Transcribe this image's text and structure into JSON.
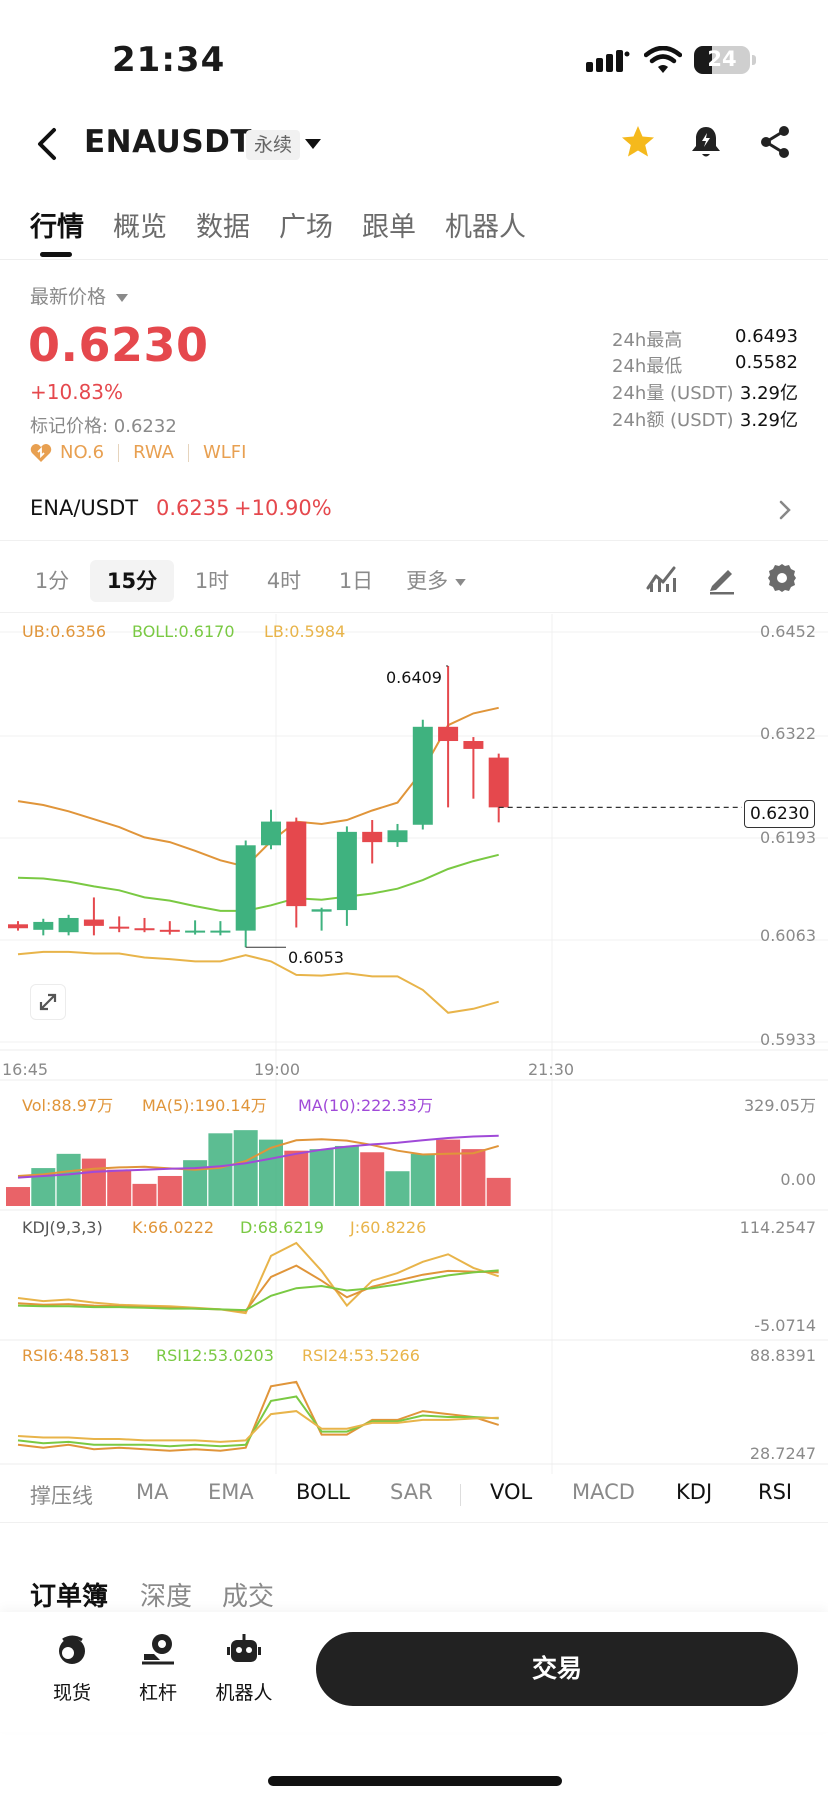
{
  "status_bar": {
    "time": "21:34",
    "battery": "24"
  },
  "header": {
    "pair": "ENAUSDT",
    "contract_type": "永续"
  },
  "tabs": [
    "行情",
    "概览",
    "数据",
    "广场",
    "跟单",
    "机器人"
  ],
  "price": {
    "latest_label": "最新价格",
    "last": "0.6230",
    "change": "+10.83%",
    "mark_price": "标记价格: 0.6232",
    "tags": [
      "NO.6",
      "RWA",
      "WLFI"
    ]
  },
  "stats": [
    {
      "label": "24h最高",
      "value": "0.6493"
    },
    {
      "label": "24h最低",
      "value": "0.5582"
    },
    {
      "label": "24h量 (USDT)",
      "value": "3.29亿"
    },
    {
      "label": "24h额 (USDT)",
      "value": "3.29亿"
    }
  ],
  "spot": {
    "pair": "ENA/USDT",
    "price": "0.6235",
    "change": "+10.90%"
  },
  "timeframes": [
    "1分",
    "15分",
    "1时",
    "4时",
    "1日",
    "更多"
  ],
  "chart_legend": {
    "ub": "UB:0.6356",
    "boll": "BOLL:0.6170",
    "lb": "LB:0.5984",
    "vol": "Vol:88.97万",
    "ma5": "MA(5):190.14万",
    "ma10": "MA(10):222.33万",
    "kdj": "KDJ(9,3,3)",
    "k": "K:66.0222",
    "d": "D:68.6219",
    "j": "J:60.8226",
    "rsi6": "RSI6:48.5813",
    "rsi12": "RSI12:53.0203",
    "rsi24": "RSI24:53.5266"
  },
  "axis": {
    "price_ticks": [
      "0.6452",
      "0.6322",
      "0.6193",
      "0.6063",
      "0.5933"
    ],
    "time_ticks": [
      "16:45",
      "19:00",
      "21:30"
    ],
    "current_price_tag": "0.6230",
    "high_annotation": "0.6409",
    "low_annotation": "0.6053",
    "vol_ticks": [
      "329.05万",
      "0.00"
    ],
    "kdj_ticks": [
      "114.2547",
      "-5.0714"
    ],
    "rsi_ticks": [
      "88.8391",
      "28.7247"
    ]
  },
  "colors": {
    "up": "#3fb27f",
    "down": "#e5484d",
    "ub": "#e0953a",
    "boll": "#7ac943",
    "lb": "#e8b44a",
    "ma10": "#a04ad8"
  },
  "chart_data": {
    "type": "candlestick",
    "x": [
      "16:45",
      "17:00",
      "17:15",
      "17:30",
      "17:45",
      "18:00",
      "18:15",
      "18:30",
      "18:45",
      "19:00",
      "19:15",
      "19:30",
      "19:45",
      "20:00",
      "20:15",
      "20:30",
      "20:45",
      "21:00",
      "21:15",
      "21:30"
    ],
    "candles": [
      {
        "o": 0.6082,
        "h": 0.6086,
        "l": 0.6074,
        "c": 0.6077
      },
      {
        "o": 0.6075,
        "h": 0.6089,
        "l": 0.6068,
        "c": 0.6085
      },
      {
        "o": 0.6072,
        "h": 0.6094,
        "l": 0.6068,
        "c": 0.609
      },
      {
        "o": 0.6088,
        "h": 0.6116,
        "l": 0.6068,
        "c": 0.608
      },
      {
        "o": 0.6079,
        "h": 0.6092,
        "l": 0.6072,
        "c": 0.6077
      },
      {
        "o": 0.6077,
        "h": 0.609,
        "l": 0.6072,
        "c": 0.6075
      },
      {
        "o": 0.6075,
        "h": 0.6086,
        "l": 0.6069,
        "c": 0.6073
      },
      {
        "o": 0.6073,
        "h": 0.6087,
        "l": 0.6069,
        "c": 0.6074
      },
      {
        "o": 0.6072,
        "h": 0.6086,
        "l": 0.6068,
        "c": 0.6074
      },
      {
        "o": 0.6074,
        "h": 0.6188,
        "l": 0.6053,
        "c": 0.6182
      },
      {
        "o": 0.6182,
        "h": 0.6227,
        "l": 0.6177,
        "c": 0.6212
      },
      {
        "o": 0.6212,
        "h": 0.6217,
        "l": 0.6078,
        "c": 0.6105
      },
      {
        "o": 0.6098,
        "h": 0.6103,
        "l": 0.6074,
        "c": 0.6101
      },
      {
        "o": 0.61,
        "h": 0.6206,
        "l": 0.608,
        "c": 0.6199
      },
      {
        "o": 0.6199,
        "h": 0.6214,
        "l": 0.6159,
        "c": 0.6186
      },
      {
        "o": 0.6186,
        "h": 0.6209,
        "l": 0.618,
        "c": 0.6201
      },
      {
        "o": 0.6208,
        "h": 0.6341,
        "l": 0.6202,
        "c": 0.6332
      },
      {
        "o": 0.6332,
        "h": 0.6409,
        "l": 0.623,
        "c": 0.6314
      },
      {
        "o": 0.6314,
        "h": 0.6319,
        "l": 0.6241,
        "c": 0.6304
      },
      {
        "o": 0.6293,
        "h": 0.6298,
        "l": 0.6211,
        "c": 0.623
      }
    ],
    "boll": {
      "ub": [
        0.6238,
        0.6233,
        0.6225,
        0.6215,
        0.6205,
        0.6192,
        0.6186,
        0.6175,
        0.6163,
        0.6155,
        0.6187,
        0.6212,
        0.6209,
        0.6214,
        0.6226,
        0.6236,
        0.6277,
        0.6334,
        0.6349,
        0.6356
      ],
      "mid": [
        0.6141,
        0.614,
        0.6136,
        0.613,
        0.6125,
        0.6116,
        0.6112,
        0.6105,
        0.6099,
        0.6099,
        0.6106,
        0.6115,
        0.6113,
        0.6117,
        0.6121,
        0.6127,
        0.6138,
        0.6152,
        0.6162,
        0.617
      ],
      "lb": [
        0.6044,
        0.6047,
        0.6047,
        0.6045,
        0.6045,
        0.604,
        0.6038,
        0.6035,
        0.6035,
        0.6043,
        0.6035,
        0.6018,
        0.6017,
        0.602,
        0.6016,
        0.6016,
        0.5999,
        0.597,
        0.5975,
        0.5984
      ]
    },
    "volume": {
      "values": [
        60,
        120,
        165,
        150,
        115,
        70,
        95,
        145,
        230,
        240,
        210,
        175,
        180,
        190,
        170,
        110,
        165,
        210,
        180,
        88.97
      ],
      "ma5": [
        95,
        100,
        110,
        118,
        122,
        124,
        119,
        115,
        121,
        142,
        184,
        208,
        211,
        207,
        193,
        175,
        163,
        165,
        167,
        190.14
      ],
      "ma10": [
        90,
        95,
        100,
        108,
        112,
        115,
        118,
        120,
        126,
        135,
        150,
        165,
        178,
        188,
        195,
        200,
        208,
        215,
        220,
        222.33
      ],
      "range": [
        0,
        329.05
      ]
    },
    "kdj": {
      "k": [
        25,
        23,
        24,
        22,
        21,
        20,
        19,
        18,
        17,
        15,
        60,
        75,
        55,
        33,
        47,
        55,
        63,
        68,
        67,
        66.02
      ],
      "d": [
        22,
        21,
        21,
        20,
        20,
        19,
        18,
        18,
        17,
        16,
        35,
        45,
        48,
        42,
        45,
        50,
        56,
        62,
        66,
        68.62
      ],
      "j": [
        32,
        28,
        30,
        26,
        23,
        22,
        21,
        19,
        17,
        12,
        88,
        105,
        68,
        22,
        55,
        65,
        80,
        90,
        72,
        60.82
      ],
      "range": [
        -5.0714,
        114.2547
      ]
    },
    "rsi": {
      "rsi6": [
        35,
        33,
        35,
        32,
        33,
        32,
        31,
        32,
        31,
        33,
        75,
        78,
        42,
        42,
        52,
        52,
        58,
        56,
        54,
        48.58
      ],
      "rsi12": [
        38,
        36,
        37,
        35,
        35,
        35,
        34,
        35,
        34,
        35,
        65,
        68,
        44,
        44,
        51,
        51,
        55,
        54,
        54,
        53.02
      ],
      "rsi24": [
        41,
        40,
        40,
        39,
        39,
        38,
        38,
        38,
        37,
        38,
        56,
        58,
        46,
        46,
        50,
        50,
        52,
        52,
        53,
        53.53
      ],
      "range": [
        28.7247,
        88.8391
      ]
    },
    "price_range": [
      0.5933,
      0.6452
    ]
  },
  "indicators": {
    "main": [
      "撑压线",
      "MA",
      "EMA",
      "BOLL",
      "SAR"
    ],
    "sub": [
      "VOL",
      "MACD",
      "KDJ",
      "RSI"
    ],
    "active": [
      "BOLL",
      "VOL",
      "KDJ",
      "RSI"
    ]
  },
  "orderbook_tabs": [
    "订单簿",
    "深度",
    "成交"
  ],
  "bottom_nav": [
    {
      "label": "现货",
      "icon": "spot-icon"
    },
    {
      "label": "杠杆",
      "icon": "margin-icon"
    },
    {
      "label": "机器人",
      "icon": "bot-icon"
    }
  ],
  "trade_button": "交易"
}
